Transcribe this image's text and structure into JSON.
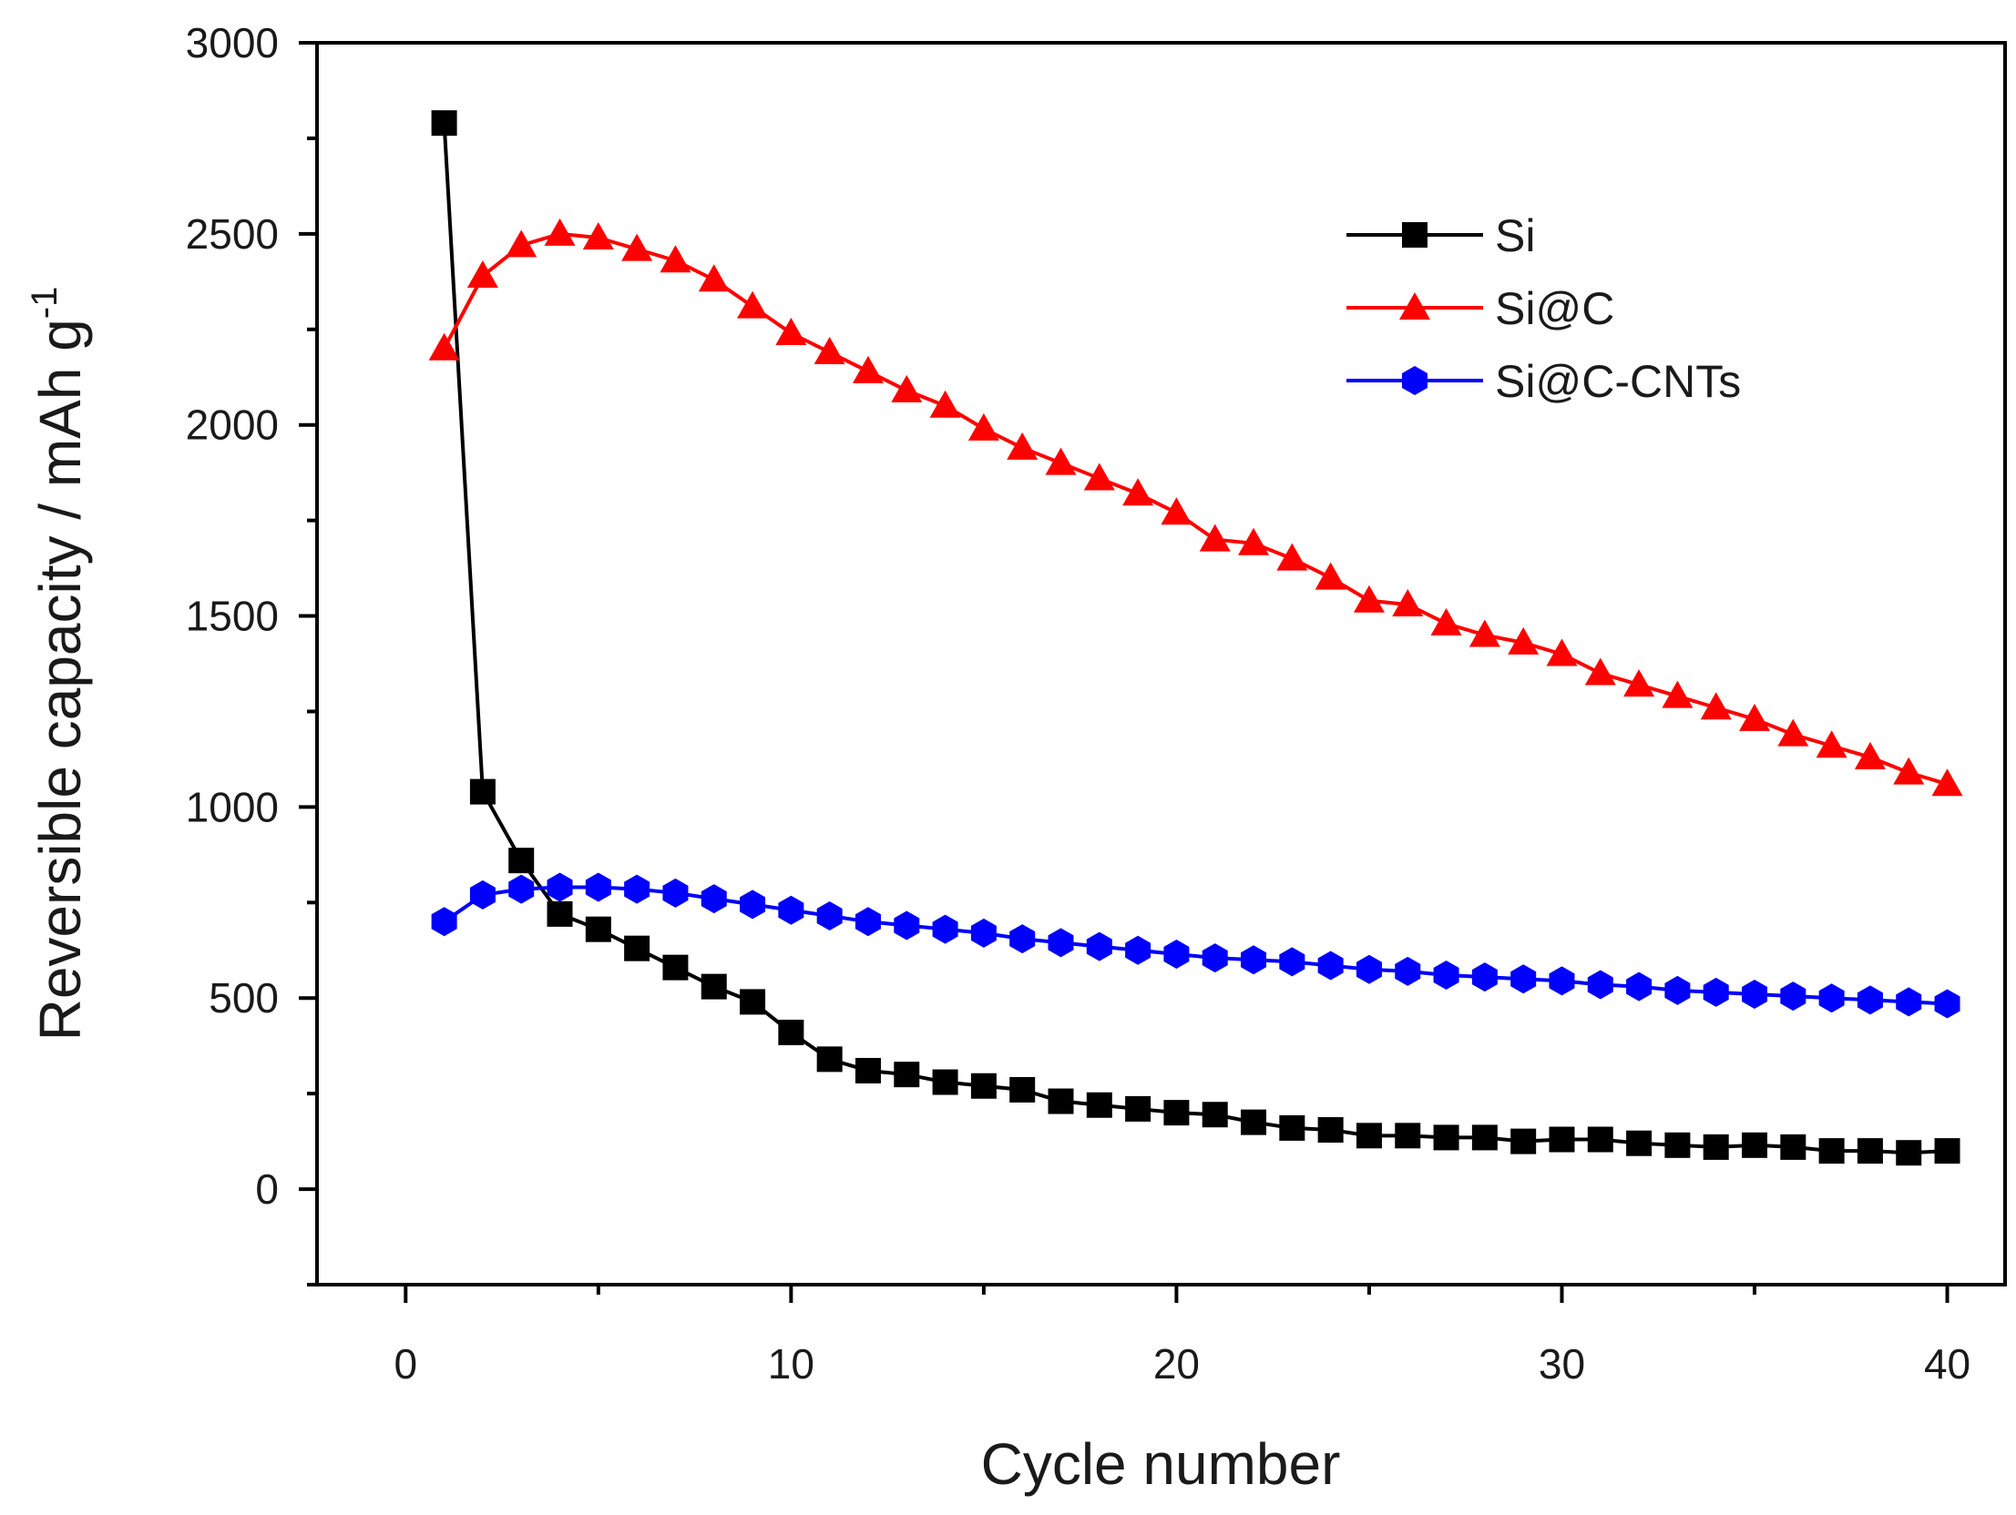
{
  "chart_data": {
    "type": "line",
    "title": "",
    "xlabel": "Cycle number",
    "ylabel": "Reversible capacity / mAh g",
    "ylabel_superscript": "-1",
    "xlim": [
      -2.3,
      41.5
    ],
    "ylim": [
      -250,
      3000
    ],
    "xticks": [
      0,
      10,
      20,
      30,
      40
    ],
    "xtick_labels": [
      "0",
      "10",
      "20",
      "30",
      "40"
    ],
    "yticks": [
      0,
      500,
      1000,
      1500,
      2000,
      2500,
      3000
    ],
    "ytick_labels": [
      "0",
      "500",
      "1000",
      "1500",
      "2000",
      "2500",
      "3000"
    ],
    "grid": false,
    "legend_position": "top-right",
    "x": [
      1,
      2,
      3,
      4,
      5,
      6,
      7,
      8,
      9,
      10,
      11,
      12,
      13,
      14,
      15,
      16,
      17,
      18,
      19,
      20,
      21,
      22,
      23,
      24,
      25,
      26,
      27,
      28,
      29,
      30,
      31,
      32,
      33,
      34,
      35,
      36,
      37,
      38,
      39,
      40
    ],
    "series": [
      {
        "name": "Si",
        "color": "#000000",
        "marker": "square",
        "values": [
          2790,
          1040,
          860,
          720,
          680,
          630,
          580,
          530,
          490,
          410,
          340,
          310,
          300,
          280,
          270,
          260,
          230,
          220,
          210,
          200,
          195,
          175,
          160,
          155,
          140,
          140,
          135,
          135,
          125,
          130,
          130,
          120,
          115,
          110,
          115,
          110,
          100,
          100,
          95,
          100
        ]
      },
      {
        "name": "Si@C",
        "color": "#ff0000",
        "marker": "triangle",
        "values": [
          2200,
          2390,
          2470,
          2500,
          2490,
          2460,
          2430,
          2380,
          2310,
          2240,
          2190,
          2140,
          2090,
          2050,
          1990,
          1940,
          1900,
          1860,
          1820,
          1770,
          1700,
          1690,
          1650,
          1600,
          1540,
          1530,
          1480,
          1450,
          1430,
          1400,
          1350,
          1320,
          1290,
          1260,
          1230,
          1190,
          1160,
          1130,
          1090,
          1060
        ]
      },
      {
        "name": "Si@C-CNTs",
        "color": "#0000ff",
        "marker": "hexagon",
        "values": [
          700,
          770,
          785,
          790,
          790,
          785,
          775,
          760,
          745,
          730,
          715,
          700,
          690,
          680,
          670,
          655,
          645,
          635,
          625,
          615,
          605,
          600,
          595,
          585,
          575,
          570,
          560,
          555,
          550,
          545,
          535,
          530,
          520,
          515,
          510,
          505,
          500,
          495,
          490,
          485
        ]
      }
    ]
  }
}
